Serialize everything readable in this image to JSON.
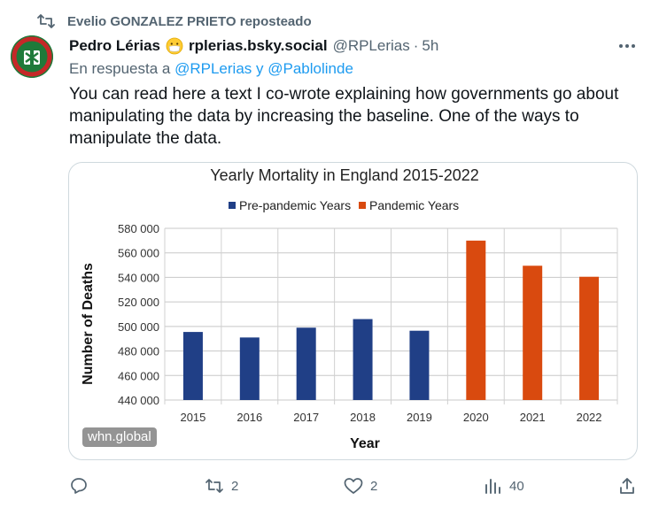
{
  "repost": {
    "text": "Evelio GONZALEZ PRIETO reposteado",
    "icon": "repost-icon"
  },
  "post": {
    "avatar": "avatar",
    "display_name": "Pedro Lérias",
    "emoji": "face-with-medical-mask",
    "bsky_handle": "rplerias.bsky.social",
    "handle": "@RPLerias",
    "separator": "·",
    "time": "5h",
    "reply_prefix": "En respuesta a",
    "reply_mention_1": "@RPLerias",
    "reply_and": "y",
    "reply_mention_2": "@Pablolinde",
    "text": "You can read here a text I co-wrote explaining how governments go about manipulating the data by increasing the baseline. One of the ways to manipulate the data."
  },
  "media": {
    "watermark": "whn.global"
  },
  "chart_data": {
    "type": "bar",
    "title": "Yearly Mortality in England 2015-2022",
    "xlabel": "Year",
    "ylabel": "Number of Deaths",
    "categories": [
      "2015",
      "2016",
      "2017",
      "2018",
      "2019",
      "2020",
      "2021",
      "2022"
    ],
    "series": [
      {
        "name": "Pre-pandemic Years",
        "color": "#203f86",
        "values": [
          495500,
          491000,
          499000,
          506000,
          496500,
          null,
          null,
          null
        ]
      },
      {
        "name": "Pandemic Years",
        "color": "#d94a0f",
        "values": [
          null,
          null,
          null,
          null,
          null,
          570000,
          549500,
          540500
        ]
      }
    ],
    "ylim": [
      440000,
      580000
    ],
    "yticks": [
      440000,
      460000,
      480000,
      500000,
      520000,
      540000,
      560000,
      580000
    ],
    "ytick_labels": [
      "440 000",
      "460 000",
      "480 000",
      "500 000",
      "520 000",
      "540 000",
      "560 000",
      "580 000"
    ],
    "grid": true,
    "legend": "top-center"
  },
  "actions": {
    "reply": {
      "icon": "reply-icon",
      "count": ""
    },
    "repost": {
      "icon": "repost-icon",
      "count": "2"
    },
    "like": {
      "icon": "heart-icon",
      "count": "2"
    },
    "views": {
      "icon": "views-icon",
      "count": "40"
    },
    "share": {
      "icon": "share-icon"
    }
  },
  "colors": {
    "accent": "#1d9bf0",
    "muted": "#536471",
    "text": "#0f1419"
  }
}
